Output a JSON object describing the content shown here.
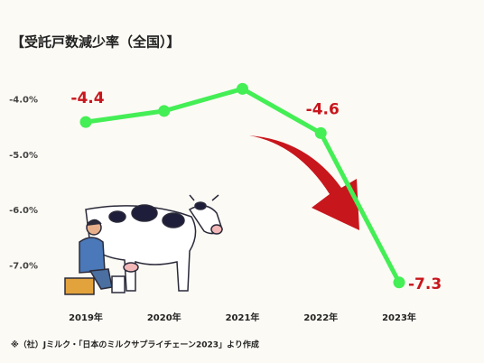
{
  "chart_data": {
    "type": "line",
    "title": "【受託戸数減少率（全国）】",
    "categories": [
      "2019年",
      "2020年",
      "2021年",
      "2022年",
      "2023年"
    ],
    "series": [
      {
        "name": "受託戸数減少率",
        "color": "#44ee55",
        "values": [
          -4.4,
          -4.2,
          -3.8,
          -4.6,
          -7.3
        ],
        "value_labels": [
          "-4.4",
          null,
          null,
          "-4.6",
          "-7.3"
        ]
      }
    ],
    "ylim": [
      -7.5,
      -3.5
    ],
    "yticks": [
      {
        "value": -4,
        "label": "-4.0%"
      },
      {
        "value": -5,
        "label": "-5.0%"
      },
      {
        "value": -6,
        "label": "-6.0%"
      },
      {
        "value": -7,
        "label": "-7.0%"
      }
    ],
    "grid": false
  },
  "source": "※（社）Jミルク・「日本のミルクサプライチェーン2023」より作成"
}
